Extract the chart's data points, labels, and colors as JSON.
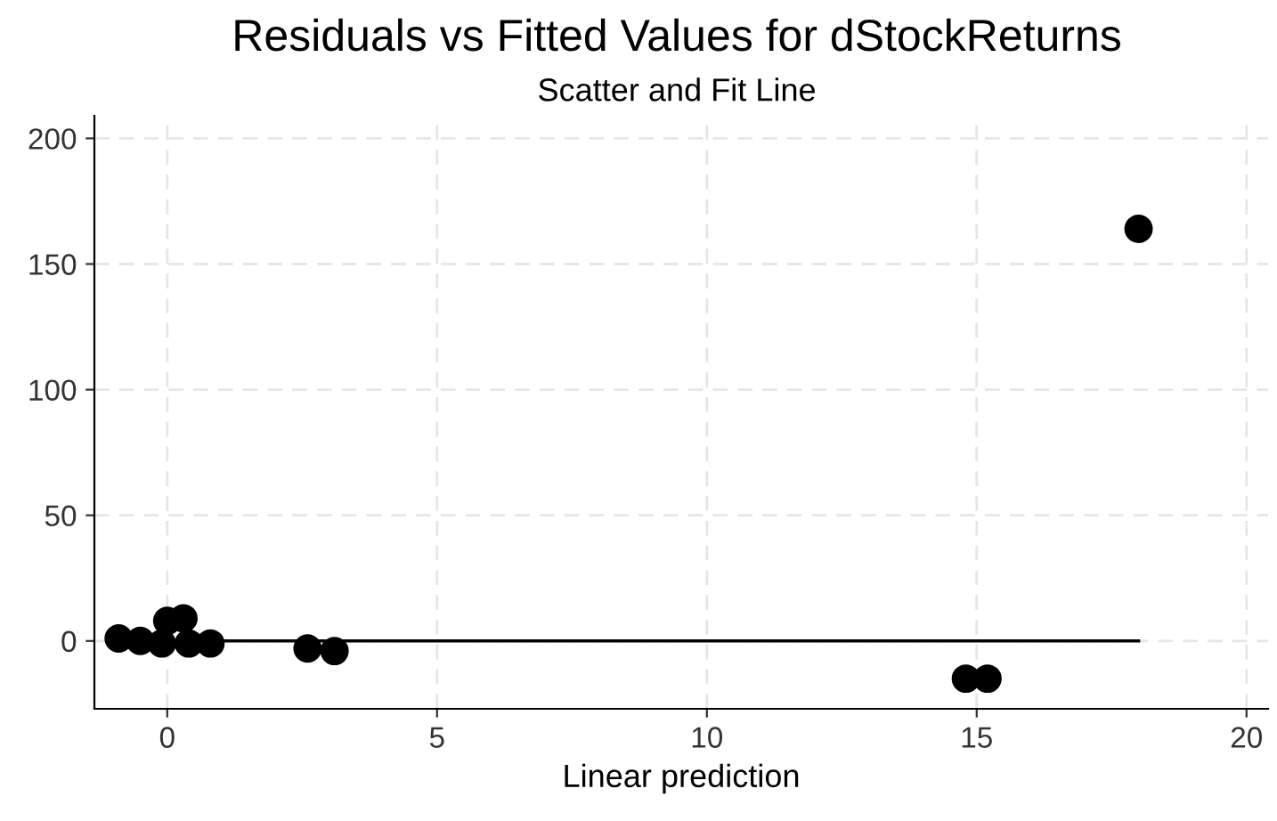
{
  "chart_data": {
    "type": "scatter",
    "title": "Residuals vs Fitted Values for dStockReturns",
    "subtitle": "Scatter and Fit Line",
    "xlabel": "Linear prediction",
    "xlim": [
      -1.35,
      20.4
    ],
    "ylim": [
      -27,
      209
    ],
    "xticks": [
      0,
      5,
      10,
      15,
      20
    ],
    "yticks": [
      0,
      50,
      100,
      150,
      200
    ],
    "grid": true,
    "series": [
      {
        "color": "#000000",
        "marker": "circle",
        "x": [
          -0.9,
          -0.5,
          -0.1,
          0.0,
          0.3,
          0.4,
          0.8,
          2.6,
          3.1,
          14.8,
          15.2,
          18.0
        ],
        "values": [
          1,
          0,
          -1,
          8,
          9,
          -1,
          -1,
          -3,
          -4,
          -15,
          -15,
          164
        ]
      },
      {
        "type": "line",
        "color": "#000000",
        "x": [
          -0.9,
          18.0
        ],
        "values": [
          0,
          0
        ]
      }
    ]
  }
}
